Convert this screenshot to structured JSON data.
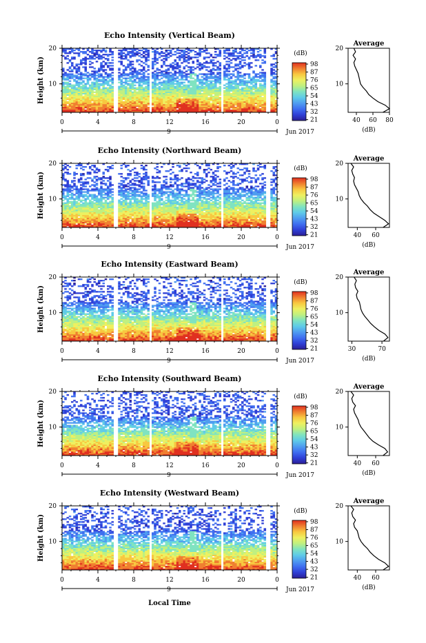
{
  "colors": {
    "colorbar": [
      "#2b1e96",
      "#2f3fd6",
      "#3f6ef0",
      "#4f9df0",
      "#5fcbe8",
      "#7fe3c0",
      "#bff080",
      "#eef060",
      "#f8c840",
      "#f07f30",
      "#e03020"
    ]
  },
  "shared": {
    "height_label": "Height (km)",
    "colorbar_unit": "(dB)",
    "avg_title": "Average",
    "avg_xlabel": "(dB)",
    "date_label": "Jun 2017",
    "day_label": "9",
    "footer_label": "Local Time"
  },
  "chart_data": [
    {
      "type": "heatmap",
      "title": "Echo Intensity (Vertical Beam)",
      "xlabel": "Local Time",
      "ylabel": "Height (km)",
      "xlim": [
        0,
        24
      ],
      "ylim": [
        2,
        20
      ],
      "x_ticks": [
        "0",
        "4",
        "8",
        "12",
        "16",
        "20",
        "0"
      ],
      "y_ticks": [
        "20",
        "10"
      ],
      "colorbar_ticks": [
        "98",
        "87",
        "76",
        "65",
        "54",
        "43",
        "32",
        "21"
      ],
      "avg_xlim": [
        30,
        80
      ],
      "avg_x_ticks": [
        "40",
        "60",
        "80"
      ],
      "avg_profile": {
        "height": [
          2,
          3,
          4,
          5,
          6,
          7,
          8,
          9,
          10,
          11,
          12,
          13,
          14,
          15,
          16,
          17,
          18,
          19,
          20
        ],
        "db": [
          72,
          80,
          75,
          66,
          60,
          55,
          52,
          48,
          45,
          44,
          43,
          42,
          40,
          38,
          37,
          39,
          36,
          39,
          37
        ]
      }
    },
    {
      "type": "heatmap",
      "title": "Echo Intensity (Northward Beam)",
      "xlabel": "Local Time",
      "ylabel": "Height (km)",
      "xlim": [
        0,
        24
      ],
      "ylim": [
        2,
        20
      ],
      "x_ticks": [
        "0",
        "4",
        "8",
        "12",
        "16",
        "20",
        "0"
      ],
      "y_ticks": [
        "20",
        "10"
      ],
      "colorbar_ticks": [
        "98",
        "87",
        "76",
        "65",
        "54",
        "43",
        "32",
        "21"
      ],
      "avg_xlim": [
        30,
        75
      ],
      "avg_x_ticks": [
        "40",
        "60"
      ],
      "avg_profile": {
        "height": [
          2,
          3,
          4,
          5,
          6,
          7,
          8,
          9,
          10,
          11,
          12,
          13,
          14,
          15,
          16,
          17,
          18,
          19,
          20
        ],
        "db": [
          68,
          74,
          70,
          64,
          58,
          54,
          51,
          47,
          44,
          42,
          41,
          39,
          37,
          36,
          37,
          35,
          34,
          36,
          33
        ]
      }
    },
    {
      "type": "heatmap",
      "title": "Echo Intensity (Eastward Beam)",
      "xlabel": "Local Time",
      "ylabel": "Height (km)",
      "xlim": [
        0,
        24
      ],
      "ylim": [
        2,
        20
      ],
      "x_ticks": [
        "0",
        "4",
        "8",
        "12",
        "16",
        "20",
        "0"
      ],
      "y_ticks": [
        "20",
        "10"
      ],
      "colorbar_ticks": [
        "98",
        "87",
        "76",
        "65",
        "54",
        "43",
        "32",
        "21"
      ],
      "avg_xlim": [
        25,
        80
      ],
      "avg_x_ticks": [
        "30",
        "70"
      ],
      "avg_profile": {
        "height": [
          2,
          3,
          4,
          5,
          6,
          7,
          8,
          9,
          10,
          11,
          12,
          13,
          14,
          15,
          16,
          17,
          18,
          19,
          20
        ],
        "db": [
          72,
          78,
          74,
          66,
          60,
          55,
          51,
          47,
          44,
          42,
          41,
          40,
          37,
          36,
          38,
          35,
          34,
          36,
          33
        ]
      }
    },
    {
      "type": "heatmap",
      "title": "Echo Intensity (Southward Beam)",
      "xlabel": "Local Time",
      "ylabel": "Height (km)",
      "xlim": [
        0,
        24
      ],
      "ylim": [
        2,
        20
      ],
      "x_ticks": [
        "0",
        "4",
        "8",
        "12",
        "16",
        "20",
        "0"
      ],
      "y_ticks": [
        "20",
        "10"
      ],
      "colorbar_ticks": [
        "98",
        "87",
        "76",
        "65",
        "54",
        "43",
        "32",
        "21"
      ],
      "avg_xlim": [
        30,
        75
      ],
      "avg_x_ticks": [
        "40",
        "60"
      ],
      "avg_profile": {
        "height": [
          2,
          3,
          4,
          5,
          6,
          7,
          8,
          9,
          10,
          11,
          12,
          13,
          14,
          15,
          16,
          17,
          18,
          19,
          20
        ],
        "db": [
          68,
          73,
          70,
          63,
          57,
          53,
          50,
          47,
          44,
          42,
          41,
          39,
          37,
          36,
          38,
          35,
          34,
          36,
          33
        ]
      }
    },
    {
      "type": "heatmap",
      "title": "Echo Intensity (Westward Beam)",
      "xlabel": "Local Time",
      "ylabel": "Height (km)",
      "xlim": [
        0,
        24
      ],
      "ylim": [
        2,
        20
      ],
      "x_ticks": [
        "0",
        "4",
        "8",
        "12",
        "16",
        "20",
        "0"
      ],
      "y_ticks": [
        "20",
        "10"
      ],
      "colorbar_ticks": [
        "98",
        "87",
        "76",
        "65",
        "54",
        "43",
        "32",
        "21"
      ],
      "avg_xlim": [
        30,
        75
      ],
      "avg_x_ticks": [
        "40",
        "60"
      ],
      "avg_profile": {
        "height": [
          2,
          3,
          4,
          5,
          6,
          7,
          8,
          9,
          10,
          11,
          12,
          13,
          14,
          15,
          16,
          17,
          18,
          19,
          20
        ],
        "db": [
          68,
          74,
          70,
          63,
          58,
          54,
          51,
          47,
          44,
          42,
          41,
          40,
          37,
          36,
          38,
          35,
          34,
          36,
          33
        ]
      }
    }
  ]
}
